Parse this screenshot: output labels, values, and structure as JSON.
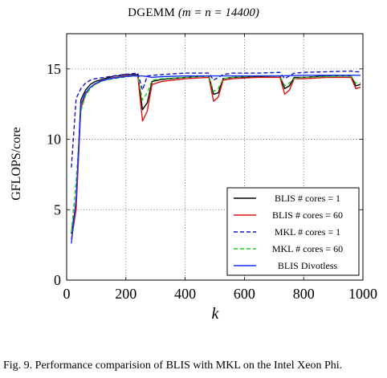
{
  "figure": {
    "title_prefix": "DGEMM",
    "title_math": "(m = n = 14400)",
    "caption": "Fig. 9.   Performance comparision of BLIS with MKL on the Intel Xeon Phi."
  },
  "chart_data": {
    "type": "line",
    "xlabel": "k",
    "ylabel": "GFLOPS/core",
    "xlim": [
      0,
      1000
    ],
    "ylim": [
      0,
      17.5
    ],
    "xticks": [
      0,
      200,
      400,
      600,
      800,
      1000
    ],
    "yticks": [
      0,
      5,
      10,
      15
    ],
    "grid": true,
    "legend_position": "bottom-right",
    "series": [
      {
        "name": "BLIS # cores = 1",
        "color": "#000000",
        "dash": "solid",
        "x": [
          16,
          32,
          48,
          64,
          80,
          96,
          112,
          128,
          144,
          160,
          176,
          192,
          208,
          224,
          240,
          256,
          272,
          288,
          320,
          400,
          480,
          496,
          512,
          528,
          560,
          640,
          720,
          736,
          752,
          768,
          800,
          880,
          960,
          976,
          992
        ],
        "y": [
          3.3,
          5.5,
          12.8,
          13.5,
          13.9,
          14.1,
          14.2,
          14.3,
          14.4,
          14.5,
          14.5,
          14.6,
          14.6,
          14.6,
          14.6,
          12.1,
          12.6,
          14.1,
          14.25,
          14.4,
          14.5,
          13.2,
          13.3,
          14.3,
          14.4,
          14.45,
          14.5,
          13.6,
          13.8,
          14.4,
          14.4,
          14.5,
          14.5,
          13.8,
          13.9
        ]
      },
      {
        "name": "BLIS # cores = 60",
        "color": "#e01010",
        "dash": "solid",
        "x": [
          16,
          32,
          48,
          64,
          80,
          96,
          112,
          128,
          144,
          160,
          176,
          192,
          208,
          224,
          240,
          256,
          272,
          288,
          320,
          400,
          480,
          496,
          512,
          528,
          560,
          640,
          720,
          736,
          752,
          768,
          800,
          880,
          960,
          976,
          992
        ],
        "y": [
          2.9,
          5.0,
          12.2,
          13.2,
          13.7,
          13.9,
          14.1,
          14.2,
          14.3,
          14.4,
          14.4,
          14.5,
          14.5,
          14.5,
          14.5,
          11.3,
          12.0,
          13.9,
          14.1,
          14.3,
          14.4,
          12.7,
          13.0,
          14.2,
          14.3,
          14.4,
          14.4,
          13.2,
          13.5,
          14.3,
          14.3,
          14.4,
          14.4,
          13.6,
          13.7
        ]
      },
      {
        "name": "MKL # cores = 1",
        "color": "#1010d0",
        "dash": "dashed",
        "x": [
          16,
          32,
          48,
          64,
          80,
          96,
          128,
          160,
          192,
          240,
          256,
          272,
          320,
          400,
          480,
          496,
          528,
          560,
          640,
          720,
          736,
          768,
          800,
          880,
          960,
          976,
          992
        ],
        "y": [
          8.0,
          12.9,
          13.6,
          14.0,
          14.2,
          14.3,
          14.4,
          14.5,
          14.6,
          14.7,
          13.5,
          14.5,
          14.6,
          14.7,
          14.7,
          14.2,
          14.6,
          14.7,
          14.7,
          14.75,
          14.3,
          14.7,
          14.75,
          14.8,
          14.85,
          14.8,
          14.8
        ]
      },
      {
        "name": "MKL # cores = 60",
        "color": "#20d020",
        "dash": "dashed",
        "x": [
          16,
          32,
          48,
          64,
          80,
          96,
          128,
          160,
          192,
          224,
          240,
          256,
          272,
          288,
          320,
          400,
          480,
          496,
          512,
          528,
          560,
          640,
          720,
          736,
          752,
          768,
          800,
          880,
          960,
          976,
          992
        ],
        "y": [
          3.4,
          7.0,
          12.0,
          13.1,
          13.6,
          13.9,
          14.2,
          14.3,
          14.4,
          14.5,
          14.5,
          12.8,
          13.3,
          14.2,
          14.3,
          14.4,
          14.5,
          13.4,
          13.6,
          14.3,
          14.4,
          14.5,
          14.5,
          13.8,
          14.0,
          14.3,
          14.4,
          14.45,
          14.5,
          14.0,
          14.0
        ]
      },
      {
        "name": "BLIS Divotless",
        "color": "#1030ff",
        "dash": "solid",
        "x": [
          16,
          32,
          48,
          64,
          80,
          96,
          112,
          128,
          144,
          160,
          176,
          192,
          224,
          240,
          256,
          288,
          320,
          400,
          480,
          560,
          640,
          720,
          800,
          880,
          960,
          992
        ],
        "y": [
          2.6,
          5.8,
          12.5,
          13.3,
          13.7,
          13.95,
          14.1,
          14.2,
          14.3,
          14.35,
          14.4,
          14.45,
          14.5,
          14.5,
          14.5,
          14.4,
          14.45,
          14.5,
          14.5,
          14.5,
          14.5,
          14.5,
          14.55,
          14.55,
          14.55,
          14.55
        ]
      }
    ]
  }
}
